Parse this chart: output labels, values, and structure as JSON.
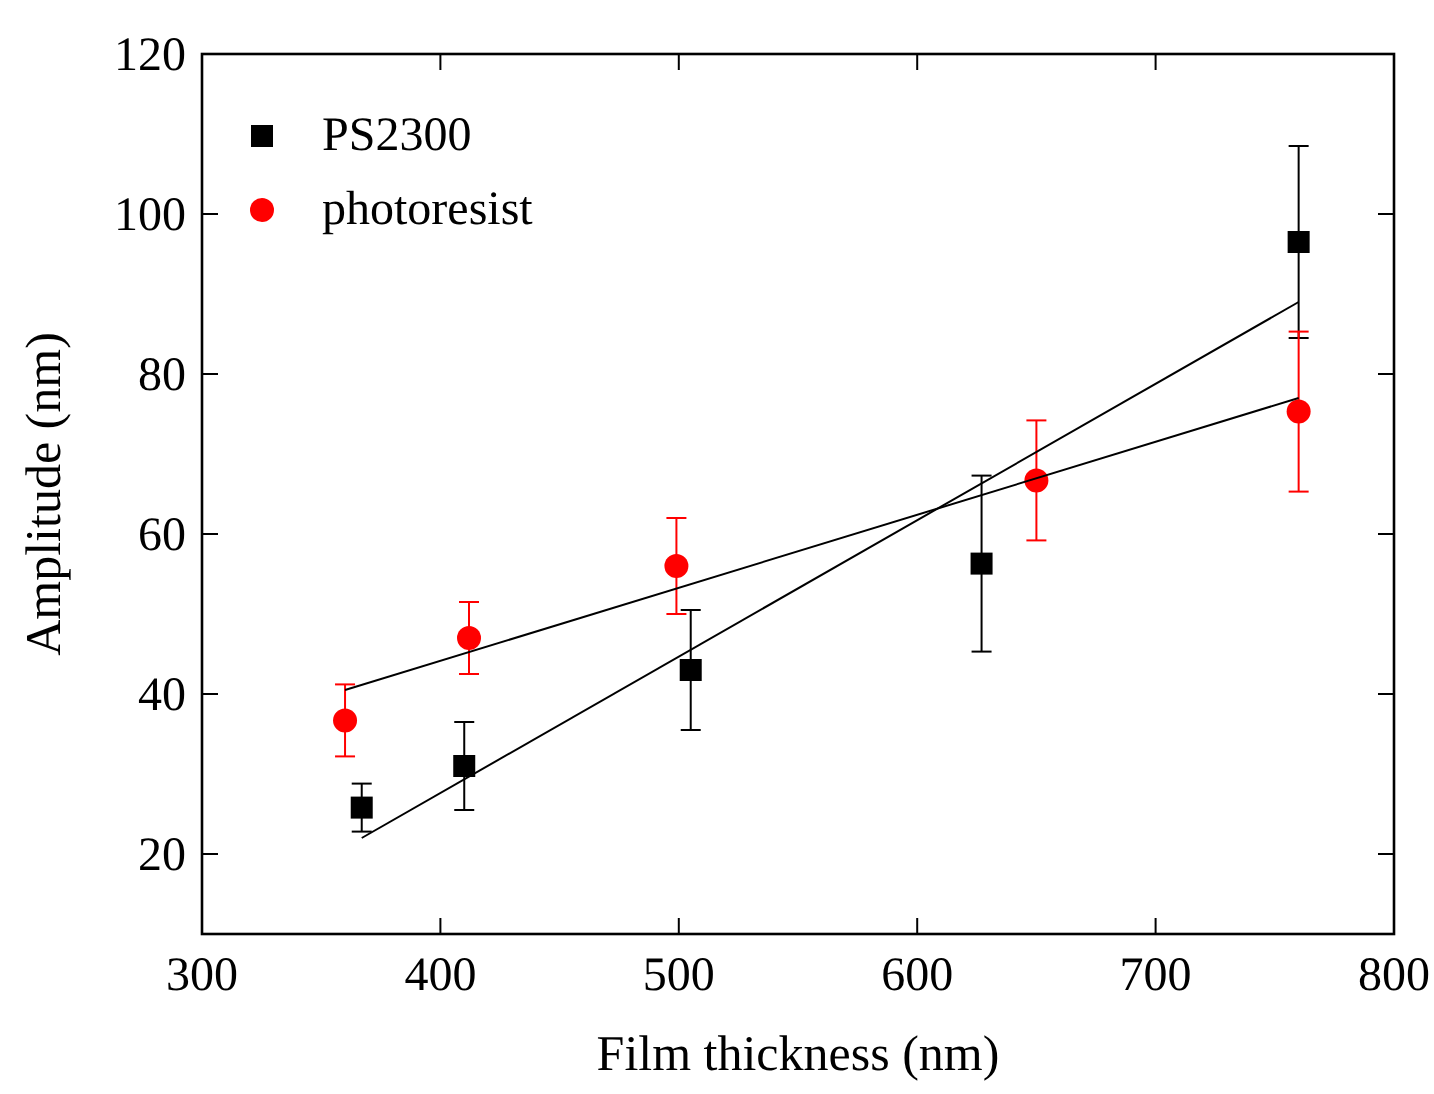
{
  "chart_data": {
    "type": "scatter",
    "xlabel": "Film thickness (nm)",
    "ylabel": "Amplitude (nm)",
    "xlim": [
      300,
      800
    ],
    "xticks": [
      300,
      400,
      500,
      600,
      700,
      800
    ],
    "ylim": [
      10,
      120
    ],
    "yticks": [
      20,
      40,
      60,
      80,
      100,
      120
    ],
    "grid": false,
    "legend": "top left",
    "series": [
      {
        "name": "PS2300",
        "color": "#000000",
        "marker": "square",
        "x": [
          367,
          410,
          505,
          627,
          760
        ],
        "values": [
          25.8,
          31,
          43,
          56.3,
          96.5
        ],
        "errors": [
          3,
          5.5,
          7.5,
          11,
          12
        ]
      },
      {
        "name": "photoresist",
        "color": "#ff0000",
        "marker": "circle",
        "x": [
          360,
          412,
          499,
          650,
          760
        ],
        "values": [
          36.7,
          47,
          56,
          66.7,
          75.3
        ],
        "errors": [
          4.5,
          4.5,
          6,
          7.5,
          10
        ]
      },
      {
        "type": "line",
        "color": "#000000",
        "x": [
          367,
          760
        ],
        "values": [
          22,
          89
        ]
      },
      {
        "type": "line",
        "color": "#000000",
        "x": [
          360,
          760
        ],
        "values": [
          40.5,
          77
        ]
      }
    ]
  }
}
